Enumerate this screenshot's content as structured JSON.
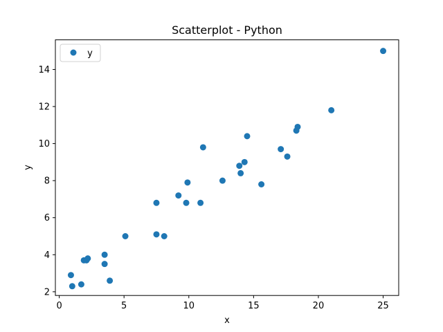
{
  "chart_data": {
    "type": "scatter",
    "title": "Scatterplot - Python",
    "xlabel": "x",
    "ylabel": "y",
    "xlim": [
      -0.3,
      26.2
    ],
    "ylim": [
      1.8,
      15.6
    ],
    "xticks": [
      0,
      5,
      10,
      15,
      20,
      25
    ],
    "yticks": [
      2,
      4,
      6,
      8,
      10,
      12,
      14
    ],
    "grid": false,
    "legend_position": "upper-left",
    "series": [
      {
        "name": "y",
        "color": "#1f77b4",
        "x": [
          0.9,
          1.0,
          1.7,
          1.9,
          2.1,
          2.2,
          3.5,
          3.5,
          3.9,
          5.1,
          7.5,
          7.5,
          8.1,
          9.2,
          9.8,
          9.9,
          10.9,
          11.1,
          12.6,
          13.9,
          14.0,
          14.3,
          14.5,
          15.6,
          17.1,
          17.6,
          18.3,
          18.4,
          21.0,
          25.0
        ],
        "y": [
          2.9,
          2.3,
          2.4,
          3.7,
          3.7,
          3.8,
          4.0,
          3.5,
          2.6,
          5.0,
          6.8,
          5.1,
          5.0,
          7.2,
          6.8,
          7.9,
          6.8,
          9.8,
          8.0,
          8.8,
          8.4,
          9.0,
          10.4,
          7.8,
          9.7,
          9.3,
          10.7,
          10.9,
          11.8,
          15.0
        ]
      }
    ]
  }
}
